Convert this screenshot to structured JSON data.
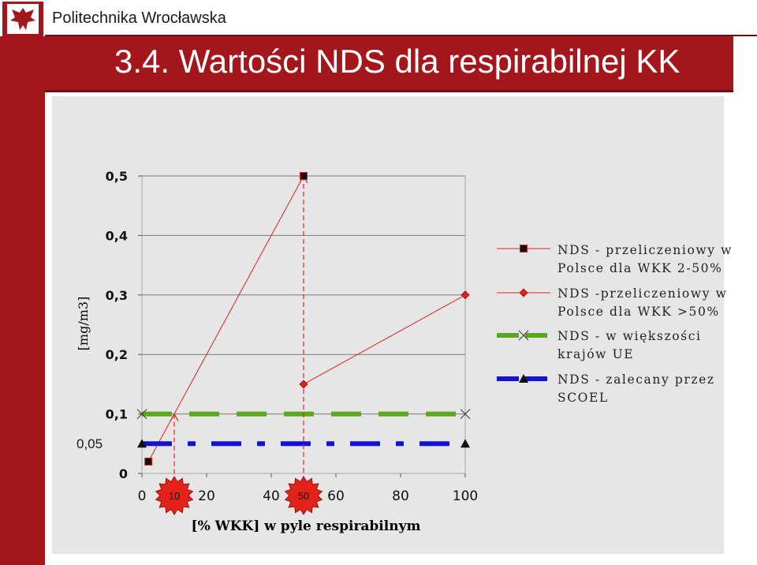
{
  "header": {
    "org_name": "Politechnika Wrocławska",
    "title": "3.4. Wartości NDS dla respirabilnej KK"
  },
  "annotation": {
    "inset_label": "0,05",
    "badge_1": "10",
    "badge_2": "50"
  },
  "colors": {
    "brand_red": "#a3161b",
    "plot_bg": "#e6e6e6",
    "series_red": "#e0211d",
    "series_green": "#5aa81d",
    "series_blue": "#1313d8"
  },
  "chart_data": {
    "type": "line",
    "xlabel": "[% WKK] w pyle respirabilnym",
    "ylabel": "[mg/m3]",
    "xlim": [
      0,
      100
    ],
    "ylim": [
      0,
      0.5
    ],
    "x_ticks": [
      "0",
      "20",
      "40",
      "60",
      "80",
      "100"
    ],
    "y_ticks": [
      "0",
      "0,1",
      "0,2",
      "0,3",
      "0,4",
      "0,5"
    ],
    "grid": "horizontal",
    "legend_position": "right",
    "series": [
      {
        "name": "NDS - przeliczeniowy w Polsce dla WKK 2-50%",
        "style": "thin-line-square",
        "color": "#e0211d",
        "x": [
          2,
          50
        ],
        "y": [
          0.02,
          0.5
        ]
      },
      {
        "name": "NDS -przeliczeniowy w Polsce dla WKK >50%",
        "style": "thin-line-diamond",
        "color": "#e0211d",
        "x": [
          50,
          100
        ],
        "y": [
          0.15,
          0.3
        ]
      },
      {
        "name": "NDS - w większości krajów UE",
        "style": "dashed-cross",
        "color": "#5aa81d",
        "x": [
          0,
          100
        ],
        "y": [
          0.1,
          0.1
        ]
      },
      {
        "name": "NDS - zalecany przez SCOEL",
        "style": "dashed-triangle",
        "color": "#1313d8",
        "x": [
          0,
          100
        ],
        "y": [
          0.05,
          0.05
        ]
      }
    ],
    "drop_lines": [
      {
        "from": [
          10,
          0.1
        ],
        "to_x": 10
      },
      {
        "from": [
          50,
          0.5
        ],
        "to_x": 50
      }
    ]
  }
}
